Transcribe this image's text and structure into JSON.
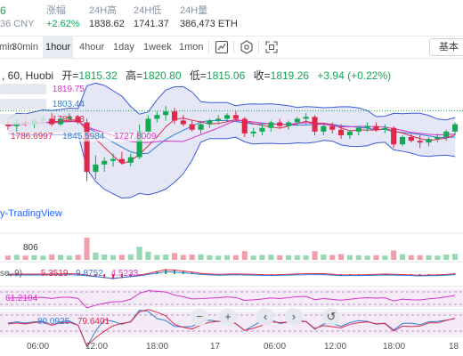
{
  "ticker": {
    "partial_price": "6",
    "price_cny": "36 CNY",
    "change_label": "涨幅",
    "change_value": "+2.62%",
    "high_label": "24H高",
    "high_value": "1838.62",
    "low_label": "24H低",
    "low_value": "1741.37",
    "volume_label": "24H量",
    "volume_value": "386,473 ETH"
  },
  "toolbar": {
    "timeframes": [
      "min",
      "30min",
      "1hour",
      "4hour",
      "1day",
      "1week",
      "1mon"
    ],
    "active_timeframe": "1hour",
    "icons": [
      "candle-style-icon",
      "indicators-icon",
      "fullscreen-icon"
    ],
    "basic_label": "基本"
  },
  "legend": {
    "symbol": ", 60, Huobi",
    "open_label": "开=",
    "open": "1815.32",
    "high_label": "高=",
    "high": "1820.80",
    "low_label": "低=",
    "low": "1815.06",
    "close_label": "收=",
    "close": "1819.26",
    "change": "+3.94 (+0.22%)",
    "boll_upper": "1819.75",
    "boll_mid": "1803.44",
    "boll_lower": "1783.23",
    "ma_values": [
      "1786.6997",
      "1845.5984",
      "1727.8009"
    ],
    "watermark": "y-TradingView"
  },
  "indicators": {
    "volume": "806",
    "macd_label": "se, 9)",
    "macd_values": [
      "5.3519",
      "9.8752",
      "4.5233"
    ],
    "rsi_value": "61.2104",
    "kdj_values": [
      "80.0925",
      "79.6401"
    ]
  },
  "nav": {
    "zoom_out": "−",
    "zoom_in": "+",
    "back": "‹",
    "forward": "›",
    "reset": "↺"
  },
  "time_axis": [
    "06:00",
    "12:00",
    "18:00",
    "17",
    "06:00",
    "12:00",
    "18:00",
    "18"
  ],
  "colors": {
    "up": "#14a854",
    "down": "#e0294a",
    "boll_fill": "#dcdff4",
    "boll_line": "#3b5bdb",
    "ma_red": "#e0294a",
    "ma_pink": "#d633c8",
    "ma_blue": "#2f7ed8"
  },
  "chart_data": {
    "type": "candlestick",
    "interval": "60",
    "exchange": "Huobi",
    "last_candle": {
      "open": 1815.32,
      "high": 1820.8,
      "low": 1815.06,
      "close": 1819.26
    },
    "bollinger": {
      "upper": 1819.75,
      "middle": 1803.44,
      "lower": 1783.23
    },
    "ma": [
      1786.6997,
      1845.5984,
      1727.8009
    ],
    "candles": [
      {
        "o": 1812,
        "h": 1814,
        "l": 1809,
        "c": 1811
      },
      {
        "o": 1811,
        "h": 1815,
        "l": 1808,
        "c": 1813
      },
      {
        "o": 1813,
        "h": 1816,
        "l": 1811,
        "c": 1812
      },
      {
        "o": 1812,
        "h": 1815,
        "l": 1810,
        "c": 1814
      },
      {
        "o": 1814,
        "h": 1817,
        "l": 1812,
        "c": 1815
      },
      {
        "o": 1815,
        "h": 1818,
        "l": 1811,
        "c": 1812
      },
      {
        "o": 1812,
        "h": 1816,
        "l": 1811,
        "c": 1815
      },
      {
        "o": 1815,
        "h": 1818,
        "l": 1813,
        "c": 1816
      },
      {
        "o": 1816,
        "h": 1817,
        "l": 1812,
        "c": 1813
      },
      {
        "o": 1813,
        "h": 1815,
        "l": 1781,
        "c": 1786
      },
      {
        "o": 1786,
        "h": 1795,
        "l": 1782,
        "c": 1790
      },
      {
        "o": 1790,
        "h": 1794,
        "l": 1786,
        "c": 1792
      },
      {
        "o": 1792,
        "h": 1796,
        "l": 1789,
        "c": 1793
      },
      {
        "o": 1793,
        "h": 1797,
        "l": 1790,
        "c": 1791
      },
      {
        "o": 1791,
        "h": 1796,
        "l": 1789,
        "c": 1794
      },
      {
        "o": 1794,
        "h": 1812,
        "l": 1793,
        "c": 1808
      },
      {
        "o": 1808,
        "h": 1817,
        "l": 1806,
        "c": 1815
      },
      {
        "o": 1815,
        "h": 1819,
        "l": 1813,
        "c": 1817
      },
      {
        "o": 1817,
        "h": 1822,
        "l": 1814,
        "c": 1819
      },
      {
        "o": 1819,
        "h": 1821,
        "l": 1812,
        "c": 1814
      },
      {
        "o": 1814,
        "h": 1817,
        "l": 1811,
        "c": 1812
      },
      {
        "o": 1812,
        "h": 1814,
        "l": 1808,
        "c": 1809
      },
      {
        "o": 1809,
        "h": 1814,
        "l": 1807,
        "c": 1812
      },
      {
        "o": 1812,
        "h": 1815,
        "l": 1810,
        "c": 1814
      },
      {
        "o": 1814,
        "h": 1817,
        "l": 1812,
        "c": 1815
      },
      {
        "o": 1815,
        "h": 1818,
        "l": 1813,
        "c": 1817
      },
      {
        "o": 1817,
        "h": 1819,
        "l": 1814,
        "c": 1815
      },
      {
        "o": 1815,
        "h": 1816,
        "l": 1805,
        "c": 1807
      },
      {
        "o": 1807,
        "h": 1810,
        "l": 1805,
        "c": 1808
      },
      {
        "o": 1808,
        "h": 1812,
        "l": 1806,
        "c": 1810
      },
      {
        "o": 1810,
        "h": 1814,
        "l": 1808,
        "c": 1813
      },
      {
        "o": 1813,
        "h": 1815,
        "l": 1810,
        "c": 1811
      },
      {
        "o": 1811,
        "h": 1814,
        "l": 1809,
        "c": 1813
      },
      {
        "o": 1813,
        "h": 1816,
        "l": 1811,
        "c": 1815
      },
      {
        "o": 1815,
        "h": 1818,
        "l": 1812,
        "c": 1816
      },
      {
        "o": 1816,
        "h": 1817,
        "l": 1806,
        "c": 1808
      },
      {
        "o": 1808,
        "h": 1812,
        "l": 1806,
        "c": 1811
      },
      {
        "o": 1811,
        "h": 1813,
        "l": 1807,
        "c": 1809
      },
      {
        "o": 1809,
        "h": 1812,
        "l": 1804,
        "c": 1806
      },
      {
        "o": 1806,
        "h": 1809,
        "l": 1804,
        "c": 1808
      },
      {
        "o": 1808,
        "h": 1811,
        "l": 1806,
        "c": 1810
      },
      {
        "o": 1810,
        "h": 1813,
        "l": 1808,
        "c": 1811
      },
      {
        "o": 1811,
        "h": 1813,
        "l": 1808,
        "c": 1809
      },
      {
        "o": 1809,
        "h": 1812,
        "l": 1807,
        "c": 1810
      },
      {
        "o": 1810,
        "h": 1811,
        "l": 1799,
        "c": 1801
      },
      {
        "o": 1801,
        "h": 1806,
        "l": 1800,
        "c": 1805
      },
      {
        "o": 1805,
        "h": 1807,
        "l": 1802,
        "c": 1803
      },
      {
        "o": 1803,
        "h": 1806,
        "l": 1799,
        "c": 1802
      },
      {
        "o": 1802,
        "h": 1805,
        "l": 1800,
        "c": 1804
      },
      {
        "o": 1804,
        "h": 1807,
        "l": 1802,
        "c": 1805
      },
      {
        "o": 1805,
        "h": 1809,
        "l": 1803,
        "c": 1808
      },
      {
        "o": 1808,
        "h": 1813,
        "l": 1806,
        "c": 1812
      }
    ]
  }
}
